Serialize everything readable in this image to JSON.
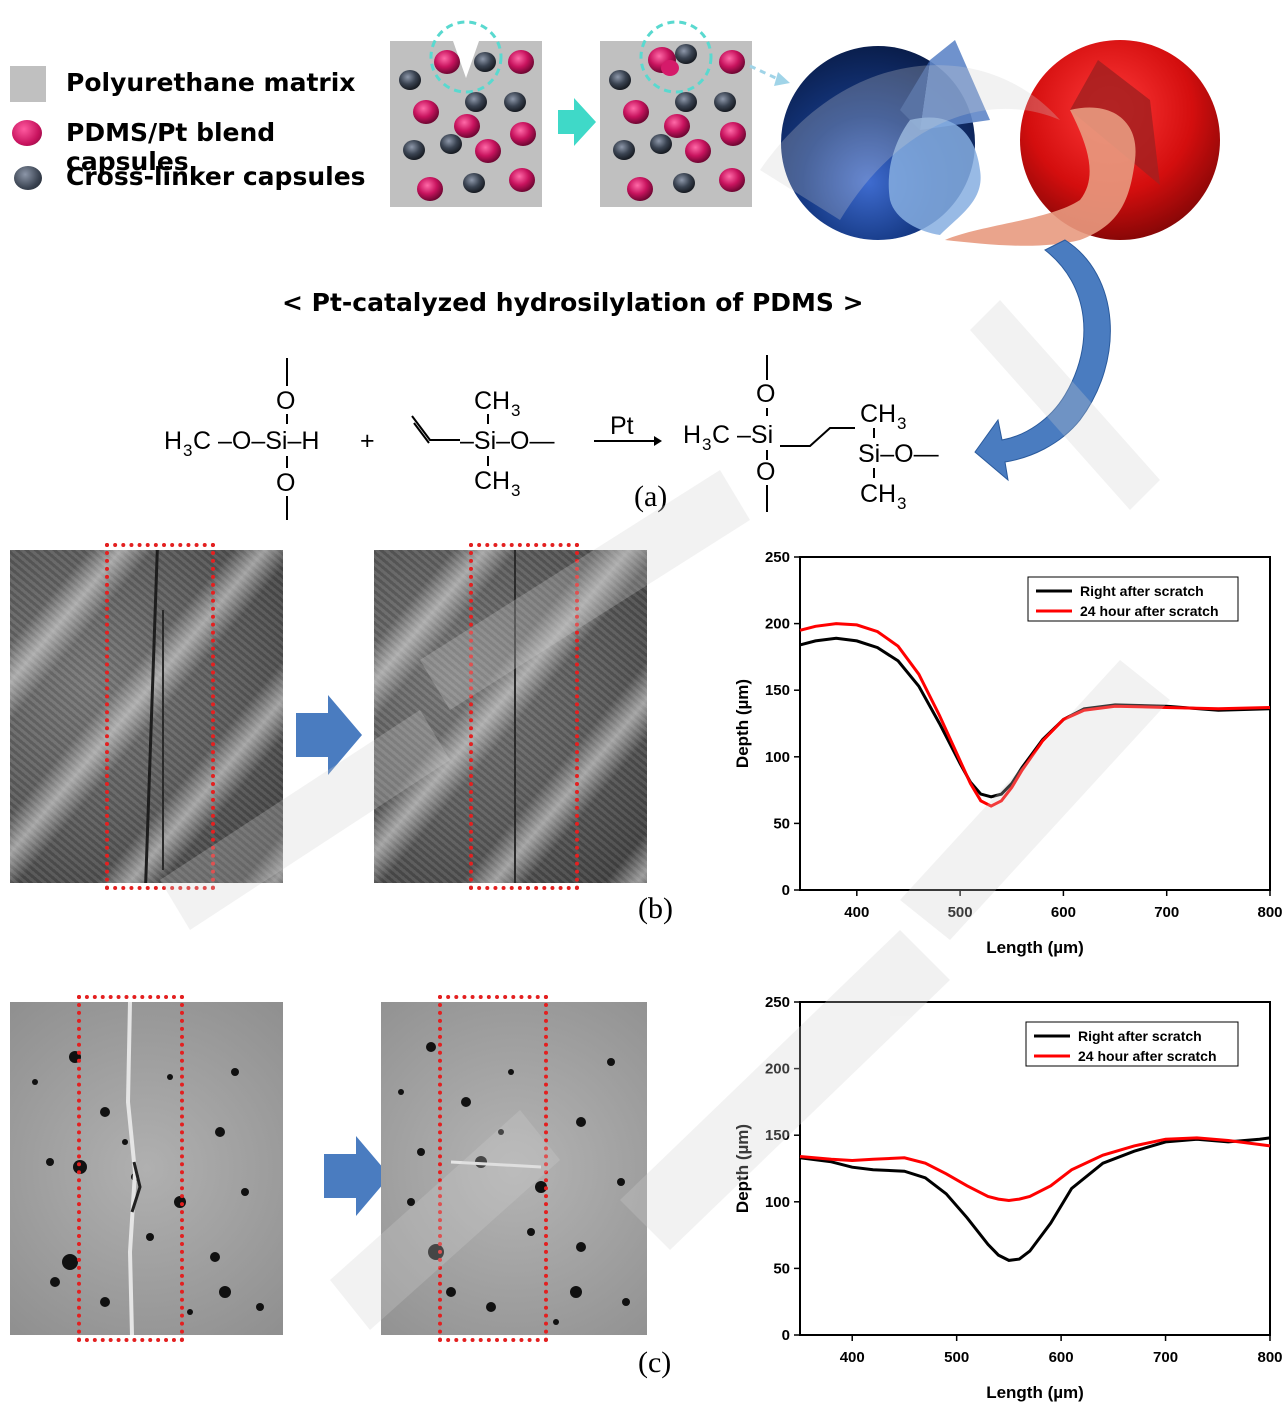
{
  "legend": {
    "items": [
      {
        "label": "Polyurethane matrix",
        "color": "#c0c0c0",
        "shape": "square"
      },
      {
        "label": "PDMS/Pt blend capsules",
        "color": "#c8135e",
        "shape": "circle"
      },
      {
        "label": "Cross-linker capsules",
        "color": "#3b4452",
        "shape": "circle"
      }
    ]
  },
  "reaction": {
    "title": "< Pt-catalyzed hydrosilylation of PDMS >",
    "catalyst": "Pt",
    "plus": "+",
    "reactant1": {
      "left": "H3C–O–Si–H",
      "top_atom": "O",
      "bottom_atom": "O",
      "si": "Si"
    },
    "reactant2": {
      "top": "CH3",
      "middle": "Si–O—",
      "bottom": "CH3"
    },
    "product": {
      "left": "H3C–Si",
      "top": "O",
      "bottom": "O",
      "right_top": "CH3",
      "right_mid": "Si–O—",
      "right_bottom": "CH3"
    }
  },
  "panel_labels": {
    "a": "(a)",
    "b": "(b)",
    "c": "(c)"
  },
  "colors": {
    "scratch_box": "#e32020",
    "arrow": "#4a7cc0",
    "teal_arrow": "#3fd9c8",
    "pdms": "#c8135e",
    "crosslinker": "#3b4452",
    "matrix": "#c0c0c0"
  },
  "chart_data": [
    {
      "type": "line",
      "panel": "b",
      "xlabel": "Length (µm)",
      "ylabel": "Depth (µm)",
      "xlim": [
        345,
        800
      ],
      "ylim": [
        0,
        250
      ],
      "xticks": [
        400,
        500,
        600,
        700,
        800
      ],
      "yticks": [
        0,
        50,
        100,
        150,
        200,
        250
      ],
      "legend_position": "top-right",
      "series": [
        {
          "name": "Right after scratch",
          "color": "#000000",
          "x": [
            345,
            360,
            380,
            400,
            420,
            440,
            460,
            480,
            500,
            510,
            520,
            530,
            540,
            550,
            560,
            580,
            600,
            620,
            650,
            700,
            750,
            800
          ],
          "y": [
            184,
            187,
            189,
            187,
            182,
            172,
            153,
            125,
            95,
            81,
            72,
            70,
            72,
            80,
            92,
            113,
            128,
            136,
            139,
            138,
            135,
            136
          ]
        },
        {
          "name": "24 hour after scratch",
          "color": "#ff0000",
          "x": [
            345,
            360,
            380,
            400,
            420,
            440,
            460,
            480,
            500,
            510,
            520,
            530,
            540,
            550,
            560,
            580,
            600,
            620,
            650,
            700,
            750,
            800
          ],
          "y": [
            195,
            198,
            200,
            199,
            194,
            183,
            162,
            131,
            97,
            80,
            67,
            63,
            67,
            77,
            90,
            112,
            128,
            135,
            138,
            137,
            136,
            137
          ]
        }
      ]
    },
    {
      "type": "line",
      "panel": "c",
      "xlabel": "Length (µm)",
      "ylabel": "Depth (µm)",
      "xlim": [
        350,
        800
      ],
      "ylim": [
        0,
        250
      ],
      "xticks": [
        400,
        500,
        600,
        700,
        800
      ],
      "yticks": [
        0,
        50,
        100,
        150,
        200,
        250
      ],
      "legend_position": "top-right",
      "series": [
        {
          "name": "Right after scratch",
          "color": "#000000",
          "x": [
            350,
            380,
            400,
            420,
            450,
            470,
            490,
            510,
            530,
            540,
            550,
            560,
            570,
            590,
            610,
            640,
            670,
            700,
            730,
            760,
            790,
            800
          ],
          "y": [
            133,
            130,
            126,
            124,
            123,
            118,
            106,
            88,
            68,
            60,
            56,
            57,
            63,
            84,
            110,
            129,
            138,
            145,
            147,
            145,
            147,
            148
          ]
        },
        {
          "name": "24 hour after scratch",
          "color": "#ff0000",
          "x": [
            350,
            380,
            400,
            420,
            450,
            470,
            490,
            510,
            530,
            540,
            550,
            560,
            570,
            590,
            610,
            640,
            670,
            700,
            730,
            760,
            790,
            800
          ],
          "y": [
            134,
            132,
            131,
            132,
            133,
            129,
            121,
            112,
            104,
            102,
            101,
            102,
            104,
            112,
            124,
            135,
            142,
            147,
            148,
            146,
            143,
            142
          ]
        }
      ]
    }
  ]
}
